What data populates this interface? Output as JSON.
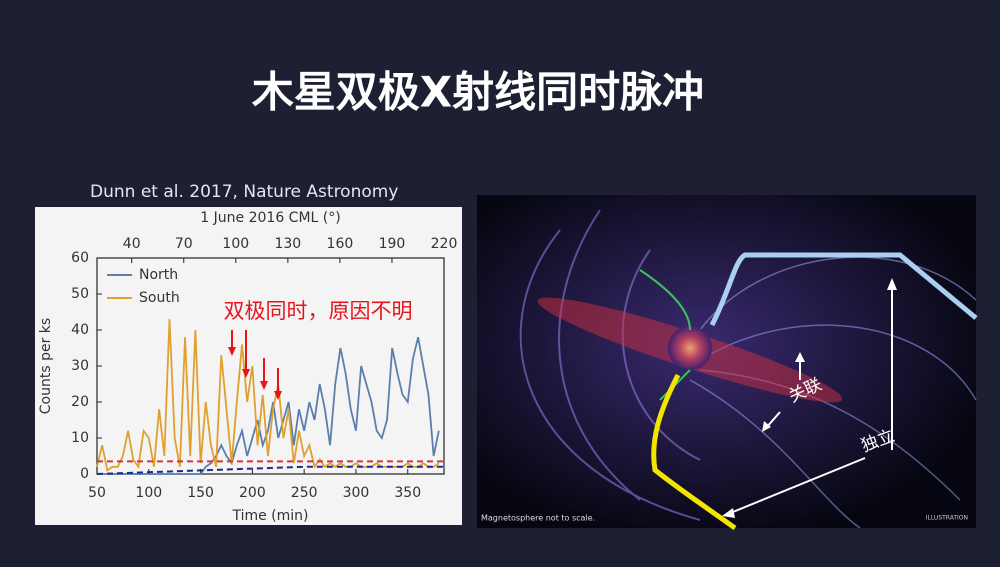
{
  "slide_title": "木星双极X射线同时脉冲",
  "citation": "Dunn et al. 2017, Nature Astronomy",
  "chart_data": {
    "type": "line",
    "x_label": "Time (min)",
    "y_label": "Counts per ks",
    "x2_label": "1 June 2016 CML (°)",
    "annotation": "双极同时，原因不明",
    "annotation_color": "#e8141c",
    "xlim": [
      50,
      385
    ],
    "xticks": [
      50,
      100,
      150,
      200,
      250,
      300,
      350
    ],
    "x2lim": [
      20,
      220
    ],
    "x2ticks": [
      40,
      70,
      100,
      130,
      160,
      190,
      220
    ],
    "ylim": [
      0,
      60
    ],
    "yticks": [
      0,
      10,
      20,
      30,
      40,
      50,
      60
    ],
    "legend": "upper-left",
    "x": [
      50,
      55,
      60,
      65,
      70,
      75,
      80,
      85,
      90,
      95,
      100,
      105,
      110,
      115,
      120,
      125,
      130,
      135,
      140,
      145,
      150,
      155,
      160,
      165,
      170,
      175,
      180,
      185,
      190,
      195,
      200,
      205,
      210,
      215,
      220,
      225,
      230,
      235,
      240,
      245,
      250,
      255,
      260,
      265,
      270,
      275,
      280,
      285,
      290,
      295,
      300,
      305,
      310,
      315,
      320,
      325,
      330,
      335,
      340,
      345,
      350,
      355,
      360,
      365,
      370,
      375,
      380
    ],
    "series": [
      {
        "name": "North",
        "color": "#5b7fad",
        "values": [
          0,
          0,
          0,
          0,
          0,
          0,
          0,
          0,
          0,
          0,
          0,
          0,
          0,
          0,
          0,
          0,
          0,
          0,
          0,
          0,
          0,
          2,
          3,
          5,
          8,
          5,
          3,
          8,
          12,
          5,
          10,
          15,
          8,
          12,
          20,
          10,
          15,
          20,
          8,
          18,
          12,
          20,
          15,
          25,
          18,
          8,
          25,
          35,
          28,
          18,
          12,
          30,
          25,
          20,
          12,
          10,
          15,
          35,
          28,
          22,
          20,
          32,
          38,
          30,
          22,
          5,
          12
        ]
      },
      {
        "name": "South",
        "color": "#e0a030",
        "values": [
          2,
          8,
          1,
          2,
          2,
          5,
          12,
          4,
          2,
          12,
          10,
          2,
          18,
          5,
          43,
          10,
          2,
          38,
          5,
          40,
          3,
          20,
          8,
          2,
          33,
          18,
          3,
          20,
          36,
          20,
          30,
          8,
          22,
          5,
          18,
          25,
          10,
          18,
          3,
          12,
          5,
          8,
          2,
          4,
          2,
          3,
          2,
          3,
          2,
          2,
          3,
          2,
          2,
          2,
          3,
          2,
          2,
          2,
          2,
          2,
          3,
          2,
          2,
          3,
          2,
          2,
          3
        ]
      },
      {
        "color": "#d23a3a",
        "dashed": true,
        "x": [
          50,
          385
        ],
        "values": [
          3.5,
          3.5
        ]
      },
      {
        "color": "#1f2a8c",
        "dashed": true,
        "x": [
          50,
          150,
          250,
          385
        ],
        "values": [
          0,
          1,
          2,
          2
        ]
      }
    ]
  },
  "illustration": {
    "labels": [
      "关联",
      "独立"
    ],
    "caption": "Magnetosphere not to scale.",
    "badge": "ILLUSTRATION"
  }
}
